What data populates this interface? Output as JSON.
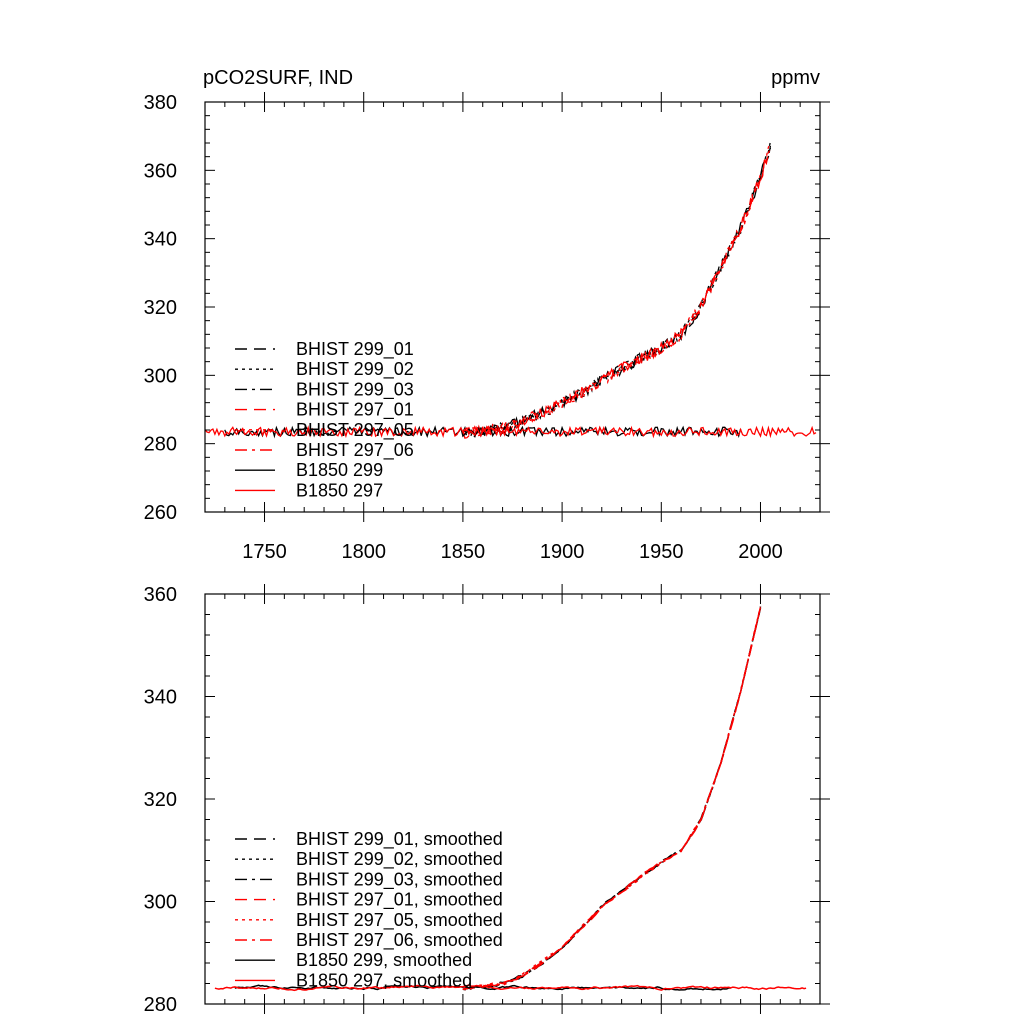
{
  "chart_data": [
    {
      "type": "line",
      "title_left": "pCO2SURF, IND",
      "title_right": "ppmv",
      "xlabel": "",
      "ylabel": "",
      "xlim": [
        1720,
        2030
      ],
      "ylim": [
        260,
        380
      ],
      "x_ticks": [
        1750,
        1800,
        1850,
        1900,
        1950,
        2000
      ],
      "y_ticks": [
        260,
        280,
        300,
        320,
        340,
        360,
        380
      ],
      "legend_position": "left",
      "series": [
        {
          "name": "BHIST 299_01",
          "color": "#000000",
          "dash": "dash",
          "range": [
            1850,
            2005
          ],
          "noise": 1.6
        },
        {
          "name": "BHIST 299_02",
          "color": "#000000",
          "dash": "dot",
          "range": [
            1850,
            2005
          ],
          "noise": 1.6
        },
        {
          "name": "BHIST 299_03",
          "color": "#000000",
          "dash": "dashdot",
          "range": [
            1850,
            2005
          ],
          "noise": 1.6
        },
        {
          "name": "BHIST 297_01",
          "color": "#ff0000",
          "dash": "dash",
          "range": [
            1850,
            2005
          ],
          "noise": 1.6
        },
        {
          "name": "BHIST 297_05",
          "color": "#ff0000",
          "dash": "dot",
          "range": [
            1850,
            2005
          ],
          "noise": 1.6
        },
        {
          "name": "BHIST 297_06",
          "color": "#ff0000",
          "dash": "dashdot",
          "range": [
            1850,
            2005
          ],
          "noise": 1.6
        },
        {
          "name": "B1850 299",
          "color": "#000000",
          "dash": "solid",
          "range": [
            1730,
            1990
          ],
          "noise": 1.3
        },
        {
          "name": "B1850 297",
          "color": "#ff0000",
          "dash": "solid",
          "range": [
            1720,
            2028
          ],
          "noise": 1.3
        }
      ],
      "historical_curve": {
        "x": [
          1850,
          1870,
          1890,
          1910,
          1930,
          1950,
          1960,
          1970,
          1980,
          1990,
          2000,
          2005
        ],
        "y": [
          283,
          284.5,
          289,
          295,
          302,
          308,
          312,
          320,
          332,
          343,
          358,
          367
        ]
      },
      "control_level": 283.5
    },
    {
      "type": "line",
      "xlabel": "",
      "ylabel": "",
      "xlim": [
        1720,
        2030
      ],
      "ylim": [
        280,
        360
      ],
      "x_ticks": [
        1750,
        1800,
        1850,
        1900,
        1950,
        2000
      ],
      "y_ticks": [
        280,
        300,
        320,
        340,
        360
      ],
      "legend_position": "bottom-left",
      "series": [
        {
          "name": "BHIST 299_01, smoothed",
          "color": "#000000",
          "dash": "dash",
          "range": [
            1850,
            2000
          ],
          "noise": 0.3
        },
        {
          "name": "BHIST 299_02, smoothed",
          "color": "#000000",
          "dash": "dot",
          "range": [
            1850,
            2000
          ],
          "noise": 0.3
        },
        {
          "name": "BHIST 299_03, smoothed",
          "color": "#000000",
          "dash": "dashdot",
          "range": [
            1850,
            2000
          ],
          "noise": 0.3
        },
        {
          "name": "BHIST 297_01, smoothed",
          "color": "#ff0000",
          "dash": "dash",
          "range": [
            1850,
            2000
          ],
          "noise": 0.3
        },
        {
          "name": "BHIST 297_05, smoothed",
          "color": "#ff0000",
          "dash": "dot",
          "range": [
            1850,
            2000
          ],
          "noise": 0.3
        },
        {
          "name": "BHIST 297_06, smoothed",
          "color": "#ff0000",
          "dash": "dashdot",
          "range": [
            1850,
            2000
          ],
          "noise": 0.3
        },
        {
          "name": "B1850 299, smoothed",
          "color": "#000000",
          "dash": "solid",
          "range": [
            1735,
            1985
          ],
          "noise": 0.35
        },
        {
          "name": "B1850 297, smoothed",
          "color": "#ff0000",
          "dash": "solid",
          "range": [
            1725,
            2023
          ],
          "noise": 0.35
        }
      ],
      "historical_curve": {
        "x": [
          1850,
          1870,
          1880,
          1890,
          1900,
          1910,
          1920,
          1930,
          1940,
          1950,
          1960,
          1970,
          1980,
          1990,
          2000
        ],
        "y": [
          283,
          284,
          285.5,
          288,
          291,
          295,
          299,
          302,
          305,
          307.5,
          310,
          316,
          327,
          341,
          357.5
        ]
      },
      "control_level": 283.2
    }
  ]
}
